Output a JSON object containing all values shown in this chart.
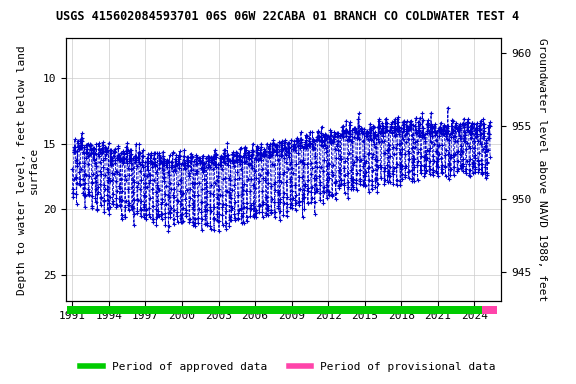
{
  "title": "USGS 415602084593701 06S 06W 22CABA 01 BRANCH CO COLDWATER TEST 4",
  "ylabel_left": "Depth to water level, feet below land\nsurface",
  "ylabel_right": "Groundwater level above NAVD 1988, feet",
  "ylim_left": [
    27,
    7
  ],
  "ylim_right": [
    943,
    961
  ],
  "xlim": [
    1990.5,
    2026.2
  ],
  "xticks": [
    1991,
    1994,
    1997,
    2000,
    2003,
    2006,
    2009,
    2012,
    2015,
    2018,
    2021,
    2024
  ],
  "yticks_left": [
    10,
    15,
    20,
    25
  ],
  "yticks_right": [
    945,
    950,
    955,
    960
  ],
  "data_color": "#0000cc",
  "marker": "+",
  "linestyle": "--",
  "legend": [
    {
      "label": "Period of approved data",
      "color": "#00cc00"
    },
    {
      "label": "Period of provisional data",
      "color": "#ff44aa"
    }
  ],
  "approved_bar": {
    "xstart": 1990.6,
    "xend": 2024.65,
    "color": "#00cc00"
  },
  "provisional_bar": {
    "xstart": 2024.65,
    "xend": 2025.9,
    "color": "#ff44aa"
  },
  "title_fontsize": 8.5,
  "axis_label_fontsize": 8,
  "tick_fontsize": 8,
  "legend_fontsize": 8,
  "font_family": "monospace"
}
